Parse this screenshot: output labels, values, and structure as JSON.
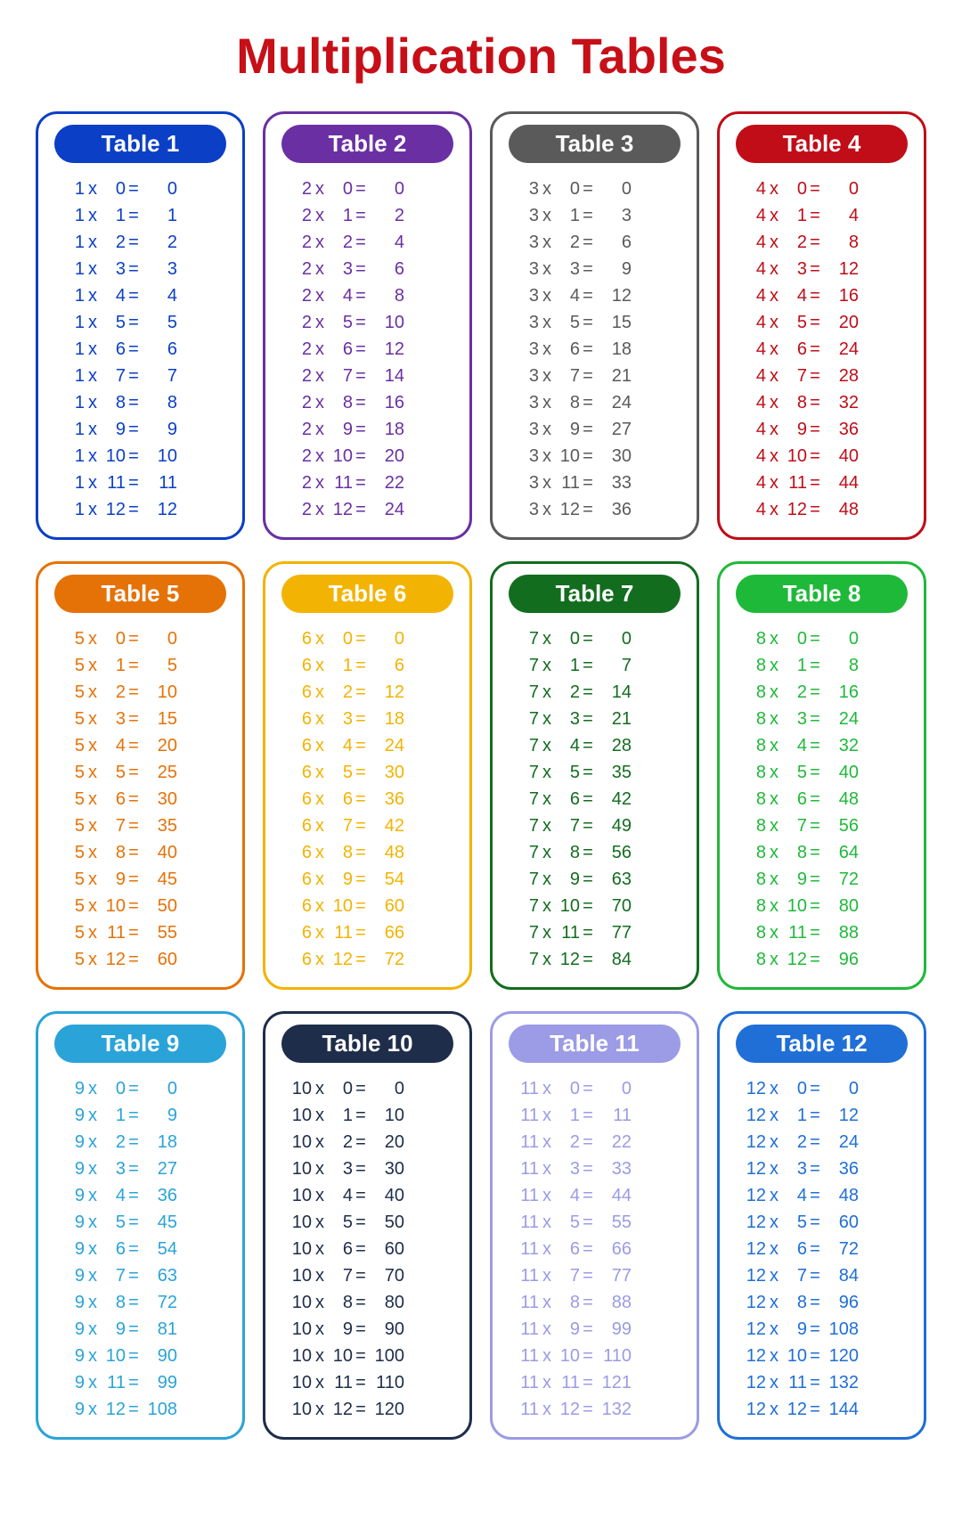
{
  "title": "Multiplication Tables",
  "title_color": "#c70f18",
  "background_color": "#ffffff",
  "header_text_color": "#ffffff",
  "multipliers": [
    0,
    1,
    2,
    3,
    4,
    5,
    6,
    7,
    8,
    9,
    10,
    11,
    12
  ],
  "body_fontsize": 20,
  "header_fontsize": 26,
  "title_fontsize": 56,
  "border_width": 3,
  "border_radius": 24,
  "tables": [
    {
      "n": 1,
      "label": "Table 1",
      "color": "#0b3fc6"
    },
    {
      "n": 2,
      "label": "Table 2",
      "color": "#6a2fa3"
    },
    {
      "n": 3,
      "label": "Table 3",
      "color": "#5a5a5a"
    },
    {
      "n": 4,
      "label": "Table 4",
      "color": "#c00d18"
    },
    {
      "n": 5,
      "label": "Table 5",
      "color": "#e57207"
    },
    {
      "n": 6,
      "label": "Table 6",
      "color": "#f3b302"
    },
    {
      "n": 7,
      "label": "Table 7",
      "color": "#136d1f"
    },
    {
      "n": 8,
      "label": "Table 8",
      "color": "#1fb93a"
    },
    {
      "n": 9,
      "label": "Table 9",
      "color": "#2aa3d8"
    },
    {
      "n": 10,
      "label": "Table 10",
      "color": "#1e2d4a"
    },
    {
      "n": 11,
      "label": "Table 11",
      "color": "#9b9be6"
    },
    {
      "n": 12,
      "label": "Table 12",
      "color": "#1f6fd6"
    }
  ]
}
